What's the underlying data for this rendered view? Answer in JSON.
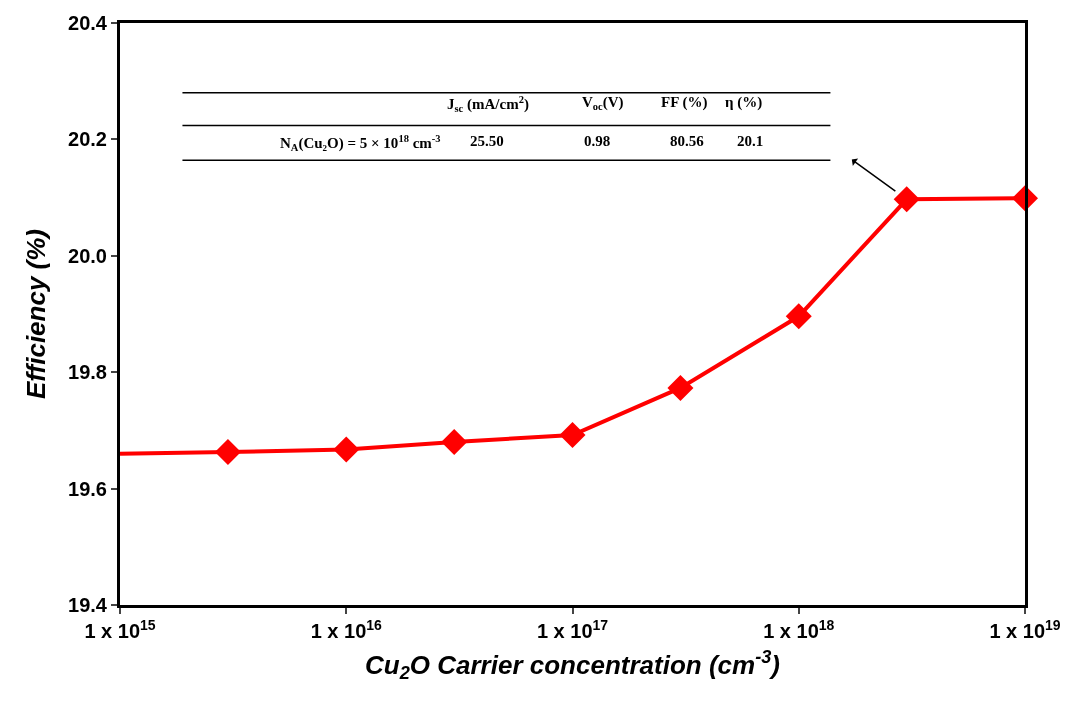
{
  "chart_data": {
    "type": "line",
    "xlabel": "Cu$_{2}$O Carrier concentration (cm$^{-3}$)",
    "ylabel": "Efficiency (%)",
    "x": [
      1000000000000000.0,
      3000000000000000.0,
      1e+16,
      3e+16,
      1e+17,
      3e+17,
      1e+18,
      3e+18,
      1e+19
    ],
    "series": [
      {
        "color": "#ff0000",
        "values": [
          19.66,
          19.663,
          19.667,
          19.68,
          19.692,
          19.773,
          19.896,
          20.097,
          20.099
        ]
      }
    ],
    "log": "x",
    "xlim": [
      1000000000000000.0,
      1e+19
    ],
    "xticks": [
      {
        "value": 1000000000000000.0,
        "label": "1 x 10$^{15}$"
      },
      {
        "value": 1e+16,
        "label": "1 x 10$^{16}$"
      },
      {
        "value": 1e+17,
        "label": "1 x 10$^{17}$"
      },
      {
        "value": 1e+18,
        "label": "1 x 10$^{18}$"
      },
      {
        "value": 1e+19,
        "label": "1 x 10$^{19}$"
      }
    ],
    "ylim": [
      19.4,
      20.4
    ],
    "yticks": [
      19.4,
      19.6,
      19.8,
      {
        "value": 20.0,
        "label": "20.0"
      },
      20.2,
      20.4
    ],
    "marker": "diamond",
    "line_style": "solid",
    "annotations": [
      "J$_{sc}$ (mA/cm$^{2}$)",
      "V$_{oc}$(V)",
      "FF (%)",
      "η (%)",
      "N$_{A}$(Cu₂O) = 5 × 10$^{18}$ cm$^{-3}$",
      "25.50",
      "0.98",
      "80.56",
      "20.1"
    ]
  }
}
